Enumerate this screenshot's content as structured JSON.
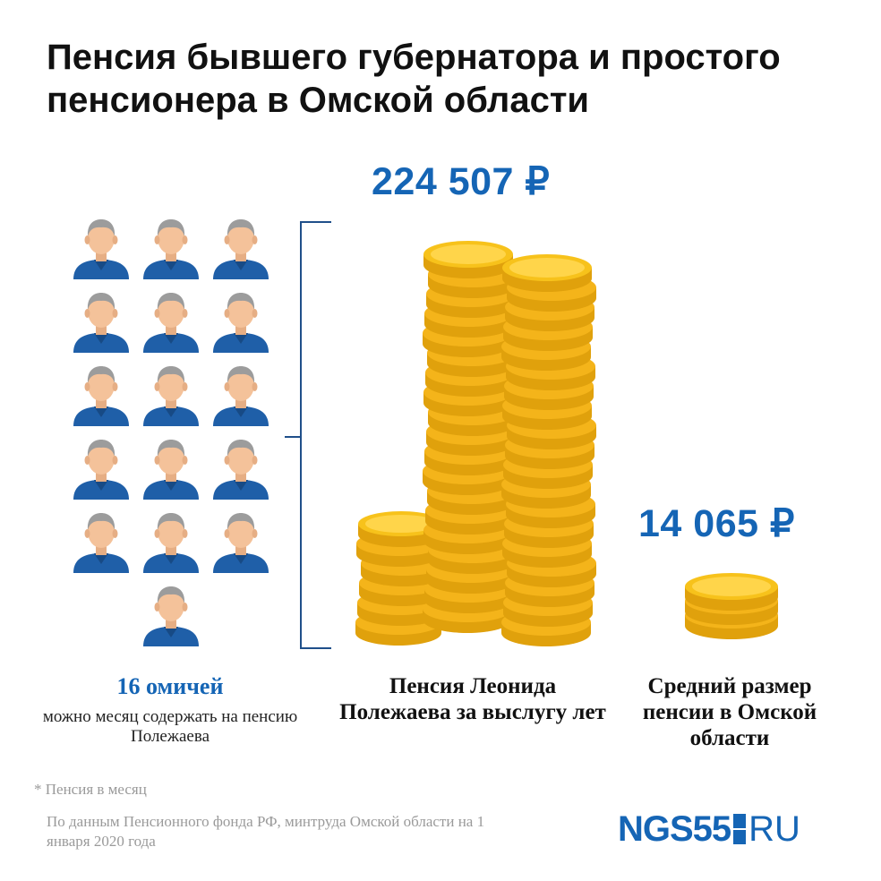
{
  "title": "Пенсия бывшего губернатора и простого пенсионера в Омской области",
  "governor_amount": "224 507 ₽",
  "average_amount": "14 065 ₽",
  "people_count": 16,
  "captions": {
    "count_headline": "16 омичей",
    "count_sub": "можно месяц содержать на пенсию Полежаева",
    "governor": "Пенсия Леонида Полежаева за выслугу лет",
    "average": "Средний размер пенсии в Омской области"
  },
  "footnote": "* Пенсия в месяц",
  "source": "По данным Пенсионного фонда РФ, минтруда Омской области на 1 января 2020 года",
  "logo": {
    "main": "NGS55",
    "suffix": "RU"
  },
  "colors": {
    "accent": "#1565b5",
    "coin": "#f7c21b",
    "coin_shade": "#e0a10c",
    "skin": "#f4c29a",
    "hair": "#9c9c9c"
  }
}
